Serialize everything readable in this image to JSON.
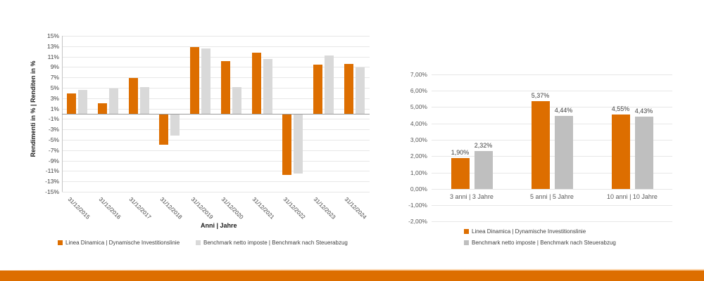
{
  "colors": {
    "accent_orange": "#DD6E00",
    "benchmark_gray_left": "#D9D9D9",
    "benchmark_gray_right": "#BFBFBF",
    "gridline": "#E7E7E7",
    "zero_line": "#9B9B9B",
    "axis_line": "#C4C4C4",
    "tick_text": "#404040",
    "muted_text": "#595959"
  },
  "chart_data": [
    {
      "type": "bar",
      "name": "annual-returns-chart",
      "title": "",
      "xlabel": "Anni | Jahre",
      "ylabel": "Rendimenti in % | Renditen in %",
      "categories": [
        "31/12/2015",
        "31/12/2016",
        "31/12/2017",
        "31/12/2018",
        "31/12/2019",
        "31/12/2020",
        "31/12/2021",
        "31/12/2022",
        "31/12/2023",
        "31/12/2024"
      ],
      "series": [
        {
          "name": "Linea Dinamica | Dynamische Investitionslinie",
          "color": "#DD6E00",
          "values": [
            3.9,
            2.0,
            6.9,
            -5.8,
            12.8,
            10.1,
            11.8,
            -11.6,
            9.5,
            9.6
          ]
        },
        {
          "name": "Benchmark netto imposte | Benchmark nach Steuerabzug",
          "color": "#D9D9D9",
          "values": [
            4.6,
            4.8,
            5.1,
            -4.1,
            12.6,
            5.1,
            10.6,
            -11.3,
            11.2,
            8.9
          ]
        }
      ],
      "ylim": [
        -15,
        15
      ],
      "ytick_values": [
        15,
        13,
        11,
        9,
        7,
        5,
        3,
        1,
        -1,
        -3,
        -5,
        -7,
        -9,
        -11,
        -13,
        -15
      ],
      "ytick_labels": [
        "15%",
        "13%",
        "11%",
        "9%",
        "7%",
        "5%",
        "3%",
        "1%",
        "-1%",
        "-3%",
        "-5%",
        "-7%",
        "-9%",
        "-11%",
        "-13%",
        "-15%"
      ],
      "grid": true,
      "legend_position": "bottom-horizontal"
    },
    {
      "type": "bar",
      "name": "period-returns-chart",
      "title": "",
      "xlabel": "",
      "ylabel": "",
      "categories": [
        "3 anni | 3 Jahre",
        "5 anni | 5 Jahre",
        "10 anni | 10 Jahre"
      ],
      "series": [
        {
          "name": "Linea Dinamica | Dynamische Investitionslinie",
          "color": "#DD6E00",
          "values": [
            1.9,
            5.37,
            4.55
          ],
          "value_labels": [
            "1,90%",
            "5,37%",
            "4,55%"
          ]
        },
        {
          "name": "Benchmark netto imposte | Benchmark nach Steuerabzug",
          "color": "#BFBFBF",
          "values": [
            2.32,
            4.44,
            4.43
          ],
          "value_labels": [
            "2,32%",
            "4,44%",
            "4,43%"
          ]
        }
      ],
      "ylim": [
        -2,
        7
      ],
      "ytick_values": [
        7,
        6,
        5,
        4,
        3,
        2,
        1,
        0,
        -1,
        -2
      ],
      "ytick_labels": [
        "7,00%",
        "6,00%",
        "5,00%",
        "4,00%",
        "3,00%",
        "2,00%",
        "1,00%",
        "0,00%",
        "-1,00%",
        "-2,00%"
      ],
      "grid": true,
      "legend_position": "bottom-stacked"
    }
  ]
}
